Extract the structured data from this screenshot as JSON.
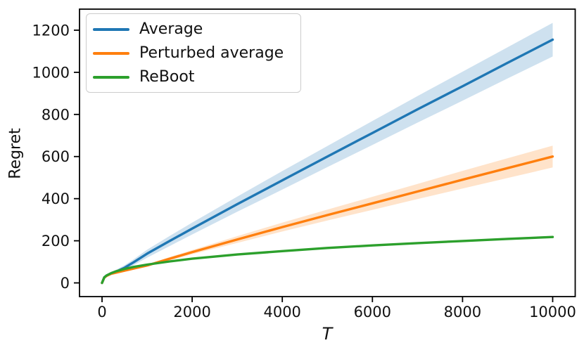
{
  "figure": {
    "background": "#ffffff",
    "text_color": "#111111",
    "spine_color": "#000000"
  },
  "axes": {
    "xlabel": "T",
    "ylabel": "Regret"
  },
  "legend": {
    "position": "upper left",
    "items": [
      {
        "label": "Average",
        "color": "#1f77b4"
      },
      {
        "label": "Perturbed average",
        "color": "#ff7f0e"
      },
      {
        "label": "ReBoot",
        "color": "#2ca02c"
      }
    ]
  },
  "chart_data": {
    "type": "line",
    "title": "",
    "xlabel": "T",
    "ylabel": "Regret",
    "xlim": [
      -500,
      10500
    ],
    "ylim": [
      -65,
      1300
    ],
    "grid": false,
    "legend_position": "upper left",
    "x_ticks": [
      0,
      2000,
      4000,
      6000,
      8000,
      10000
    ],
    "y_ticks": [
      0,
      200,
      400,
      600,
      800,
      1000,
      1200
    ],
    "x": [
      0,
      50,
      100,
      200,
      300,
      500,
      700,
      1000,
      1500,
      2000,
      3000,
      4000,
      5000,
      6000,
      7000,
      8000,
      9000,
      10000
    ],
    "band_opacity": 0.22,
    "series": [
      {
        "name": "Average",
        "color": "#1f77b4",
        "values": [
          0,
          26,
          35,
          45,
          52,
          72,
          98,
          139,
          199,
          258,
          374,
          487,
          600,
          712,
          824,
          934,
          1045,
          1155
        ],
        "band_lower": [
          0,
          22,
          30,
          38,
          43,
          60,
          84,
          120,
          175,
          230,
          338,
          443,
          550,
          655,
          761,
          865,
          971,
          1075
        ],
        "band_upper": [
          0,
          30,
          40,
          52,
          61,
          84,
          112,
          158,
          223,
          286,
          410,
          531,
          650,
          769,
          887,
          1003,
          1119,
          1235
        ]
      },
      {
        "name": "Perturbed average",
        "color": "#ff7f0e",
        "values": [
          0,
          25,
          33,
          43,
          48,
          58,
          68,
          83,
          115,
          146,
          206,
          265,
          322,
          378,
          434,
          490,
          545,
          600
        ],
        "band_lower": [
          0,
          24,
          32,
          42,
          46,
          55,
          64,
          78,
          107,
          136,
          190,
          244,
          296,
          347,
          398,
          448,
          498,
          548
        ],
        "band_upper": [
          0,
          26,
          34,
          44,
          50,
          61,
          72,
          88,
          123,
          156,
          222,
          286,
          348,
          409,
          470,
          532,
          592,
          652
        ]
      },
      {
        "name": "ReBoot",
        "color": "#2ca02c",
        "values": [
          0,
          26,
          35,
          46,
          54,
          66,
          76,
          87,
          102,
          115,
          135,
          151,
          166,
          178,
          189,
          199,
          209,
          218
        ],
        "band_lower": [
          0,
          25,
          34,
          45,
          53,
          65,
          75,
          85,
          100,
          113,
          132,
          148,
          163,
          174,
          185,
          195,
          204,
          213
        ],
        "band_upper": [
          0,
          27,
          36,
          47,
          55,
          67,
          77,
          89,
          104,
          117,
          138,
          154,
          169,
          182,
          193,
          203,
          214,
          223
        ]
      }
    ]
  }
}
